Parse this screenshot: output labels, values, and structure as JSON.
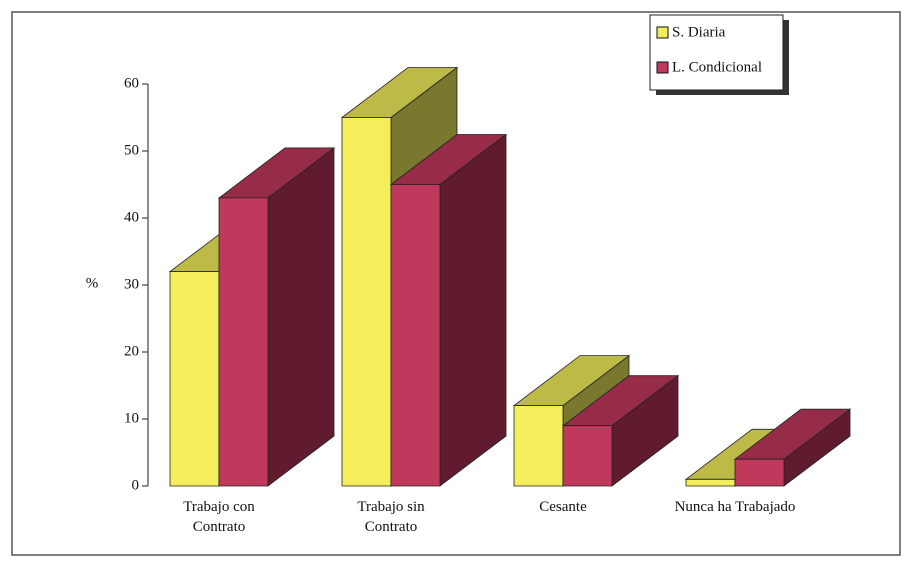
{
  "chart_data": {
    "type": "bar3d",
    "y_label": "%",
    "categories": [
      "Trabajo con\nContrato",
      "Trabajo sin\nContrato",
      "Cesante",
      "Nunca ha Trabajado"
    ],
    "series": [
      {
        "name": "S. Diaria",
        "color": "#f4ee5c",
        "values": [
          32,
          55,
          12,
          1
        ]
      },
      {
        "name": "L. Condicional",
        "color": "#c0385c",
        "values": [
          43,
          45,
          9,
          4
        ]
      }
    ],
    "ylim": [
      0,
      60
    ],
    "yticks": [
      0,
      10,
      20,
      30,
      40,
      50,
      60
    ]
  }
}
